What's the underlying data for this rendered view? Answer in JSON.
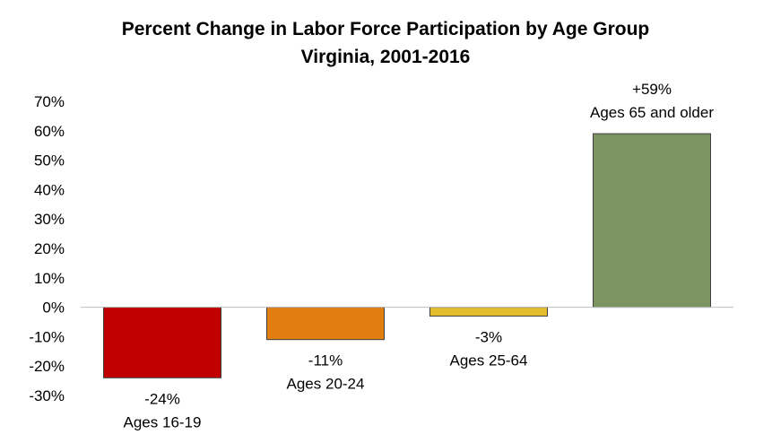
{
  "chart_data": {
    "type": "bar",
    "title": "Percent Change in Labor Force Participation by Age Group",
    "subtitle": "Virginia, 2001-2016",
    "xlabel": "",
    "ylabel": "",
    "categories": [
      "Ages 16-19",
      "Ages 20-24",
      "Ages 25-64",
      "Ages 65 and older"
    ],
    "values": [
      -24,
      -11,
      -3,
      59
    ],
    "value_labels": [
      "-24%",
      "-11%",
      "-3%",
      "+59%"
    ],
    "colors": [
      "#C00000",
      "#E07E10",
      "#E4BE2E",
      "#7C9461"
    ],
    "ylim": [
      -30,
      70
    ],
    "y_ticks": [
      70,
      60,
      50,
      40,
      30,
      20,
      10,
      0,
      -10,
      -20,
      -30
    ],
    "y_tick_labels": [
      "70%",
      "60%",
      "50%",
      "40%",
      "30%",
      "20%",
      "10%",
      "0%",
      "-10%",
      "-20%",
      "-30%"
    ],
    "grid": false,
    "legend": "none"
  }
}
